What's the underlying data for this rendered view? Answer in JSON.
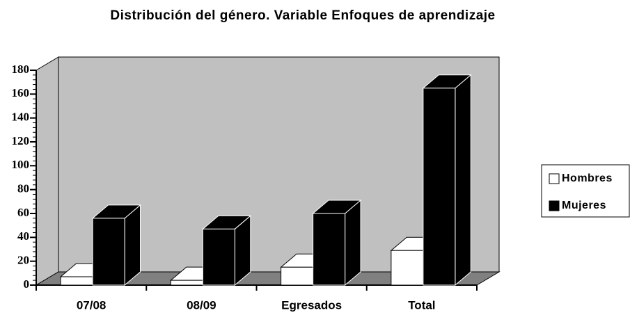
{
  "chart_data": {
    "type": "bar3d",
    "title": "Distribución del género. Variable Enfoques de aprendizaje",
    "categories": [
      "07/08",
      "08/09",
      "Egresados",
      "Total"
    ],
    "series": [
      {
        "name": "Hombres",
        "color": "#ffffff",
        "values": [
          7,
          4,
          15,
          29
        ]
      },
      {
        "name": "Mujeres",
        "color": "#000000",
        "values": [
          56,
          47,
          60,
          165
        ]
      }
    ],
    "ylim": [
      0,
      180
    ],
    "yticks": [
      0,
      20,
      40,
      60,
      80,
      100,
      120,
      140,
      160,
      180
    ],
    "wall_color": "#c0c0c0",
    "floor_color": "#808080",
    "legend": "right"
  }
}
